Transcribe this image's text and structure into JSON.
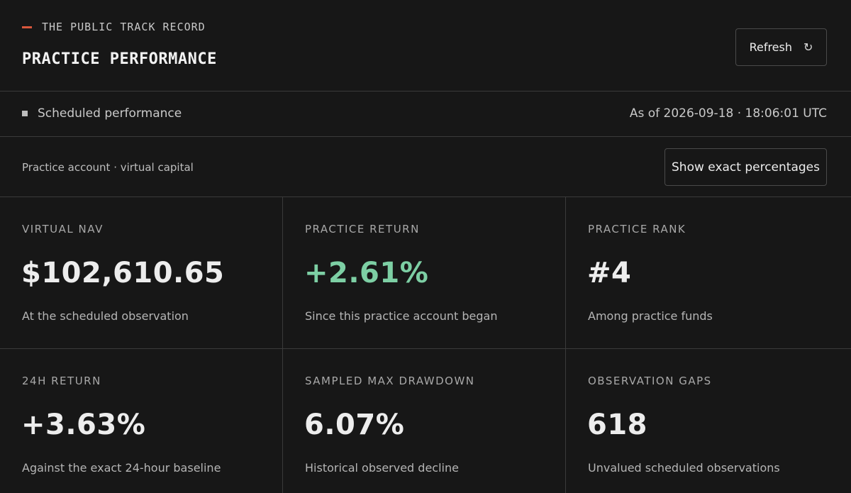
{
  "header": {
    "eyebrow": "THE PUBLIC TRACK RECORD",
    "title": "PRACTICE PERFORMANCE",
    "refresh_label": "Refresh",
    "refresh_icon": "↻"
  },
  "status": {
    "label": "Scheduled performance",
    "as_of": "As of 2026-09-18 · 18:06:01 UTC"
  },
  "account": {
    "label": "Practice account · virtual capital",
    "exact_button_label": "Show exact percentages"
  },
  "metrics": [
    {
      "label": "VIRTUAL NAV",
      "value": "$102,610.65",
      "sub": "At the scheduled observation"
    },
    {
      "label": "PRACTICE RETURN",
      "value": "+2.61%",
      "sub": "Since this practice account began"
    },
    {
      "label": "PRACTICE RANK",
      "value": "#4",
      "sub": "Among practice funds"
    },
    {
      "label": "24H RETURN",
      "value": "+3.63%",
      "sub": "Against the exact 24-hour baseline"
    },
    {
      "label": "SAMPLED MAX DRAWDOWN",
      "value": "6.07%",
      "sub": "Historical observed decline"
    },
    {
      "label": "OBSERVATION GAPS",
      "value": "618",
      "sub": "Unvalued scheduled observations"
    }
  ],
  "colors": {
    "background": "#171717",
    "accent_dash": "#d9573c",
    "positive": "#7dcfa4",
    "border": "#3a3a3a"
  }
}
